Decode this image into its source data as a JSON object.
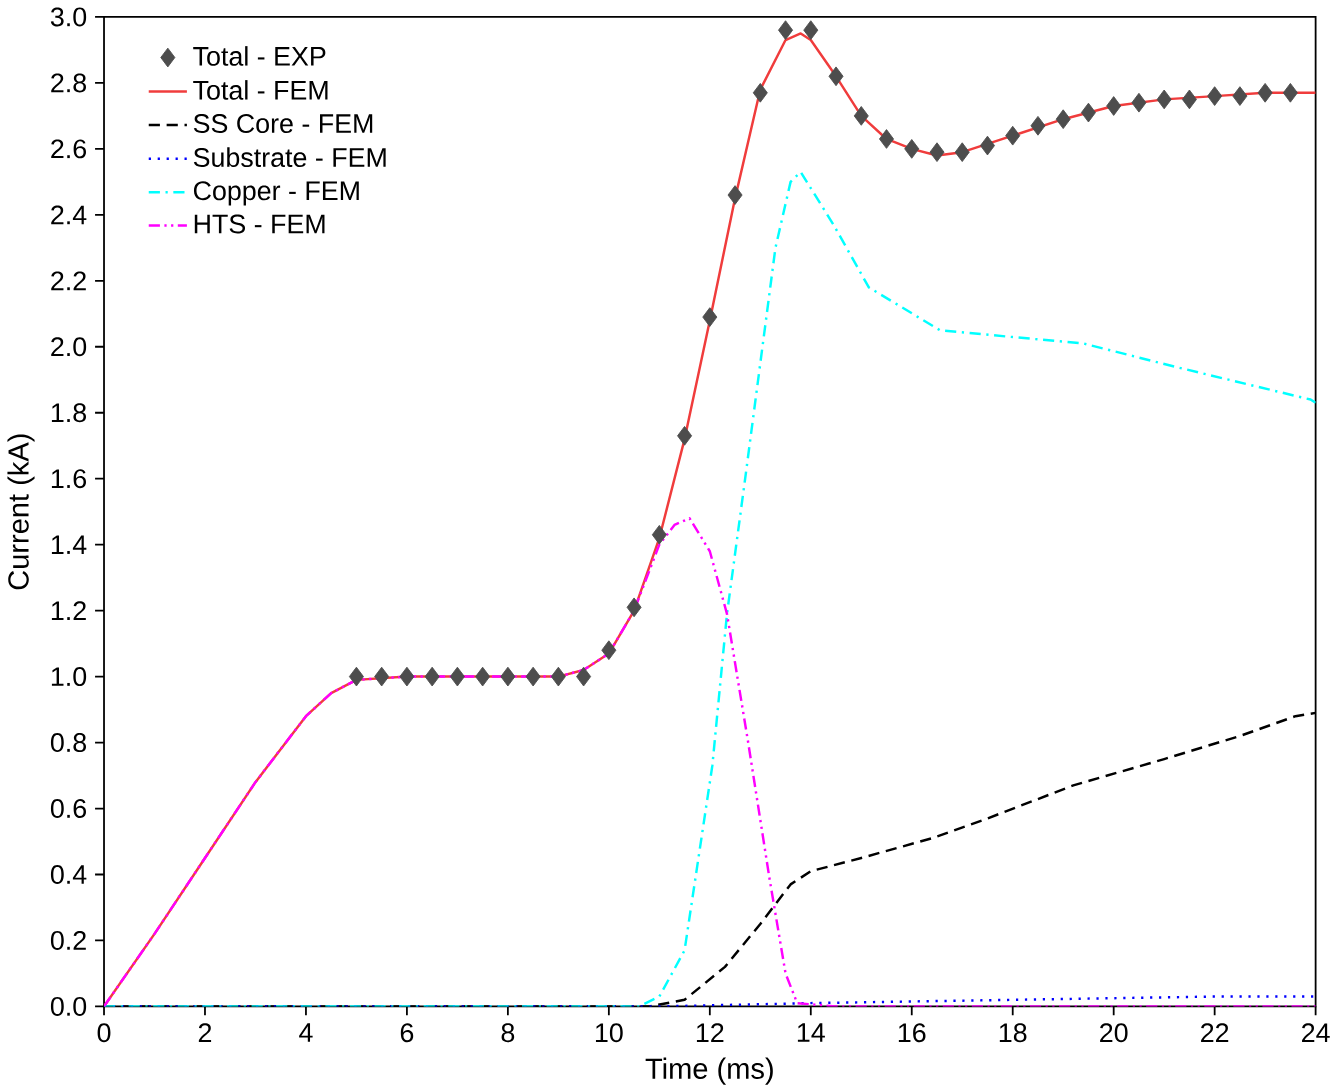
{
  "chart_data": {
    "type": "line",
    "xlabel": "Time (ms)",
    "ylabel": "Current (kA)",
    "xlim": [
      0,
      24
    ],
    "xticks": [
      0,
      2,
      4,
      6,
      8,
      10,
      12,
      14,
      16,
      18,
      20,
      22,
      24
    ],
    "ylim": [
      0,
      3.0
    ],
    "yticks": [
      {
        "value": 0,
        "label": "0.0"
      },
      {
        "value": 0.2,
        "label": "0.2"
      },
      {
        "value": 0.4,
        "label": "0.4"
      },
      {
        "value": 0.6,
        "label": "0.6"
      },
      {
        "value": 0.8,
        "label": "0.8"
      },
      {
        "value": 1.0,
        "label": "1.0"
      },
      {
        "value": 1.2,
        "label": "1.2"
      },
      {
        "value": 1.4,
        "label": "1.4"
      },
      {
        "value": 1.6,
        "label": "1.6"
      },
      {
        "value": 1.8,
        "label": "1.8"
      },
      {
        "value": 2.0,
        "label": "2.0"
      },
      {
        "value": 2.2,
        "label": "2.2"
      },
      {
        "value": 2.4,
        "label": "2.4"
      },
      {
        "value": 2.6,
        "label": "2.6"
      },
      {
        "value": 2.8,
        "label": "2.8"
      },
      {
        "value": 3.0,
        "label": "3.0"
      }
    ],
    "legend": "top left",
    "series": [
      {
        "name": "Total - EXP",
        "type": "scatter",
        "marker": "diamond",
        "color": "#4d4d4d",
        "x": [
          5.0,
          5.5,
          6.0,
          6.5,
          7.0,
          7.5,
          8.0,
          8.5,
          9.0,
          9.5,
          10.0,
          10.5,
          11.0,
          11.5,
          12.0,
          12.5,
          13.0,
          13.5,
          14.0,
          14.5,
          15.0,
          15.5,
          16.0,
          16.5,
          17.0,
          17.5,
          18.0,
          18.5,
          19.0,
          19.5,
          20.0,
          20.5,
          21.0,
          21.5,
          22.0,
          22.5,
          23.0,
          23.5
        ],
        "values": [
          1.0,
          1.0,
          1.0,
          1.0,
          1.0,
          1.0,
          1.0,
          1.0,
          1.0,
          1.0,
          1.08,
          1.21,
          1.43,
          1.73,
          2.09,
          2.46,
          2.77,
          2.96,
          2.96,
          2.82,
          2.7,
          2.63,
          2.6,
          2.59,
          2.59,
          2.61,
          2.64,
          2.67,
          2.69,
          2.71,
          2.73,
          2.74,
          2.75,
          2.75,
          2.76,
          2.76,
          2.77,
          2.77
        ]
      },
      {
        "name": "Total - FEM",
        "line_style": "solid",
        "color": "#f03c3c",
        "x": [
          0,
          1,
          2,
          3,
          4,
          4.5,
          5,
          6,
          9,
          9.5,
          10,
          10.5,
          11,
          11.5,
          12,
          12.5,
          13,
          13.5,
          13.8,
          14,
          14.5,
          15,
          15.5,
          16,
          16.5,
          17,
          18,
          19,
          20,
          21,
          22,
          23,
          24
        ],
        "values": [
          0,
          0.22,
          0.45,
          0.68,
          0.88,
          0.95,
          0.99,
          1.0,
          1.0,
          1.02,
          1.07,
          1.2,
          1.42,
          1.72,
          2.08,
          2.45,
          2.78,
          2.93,
          2.95,
          2.93,
          2.82,
          2.7,
          2.63,
          2.6,
          2.58,
          2.59,
          2.64,
          2.69,
          2.73,
          2.75,
          2.76,
          2.77,
          2.77
        ]
      },
      {
        "name": "SS Core - FEM",
        "line_style": "dashed",
        "color": "#000000",
        "x": [
          0,
          10.8,
          11.5,
          12.3,
          13.0,
          13.6,
          14.0,
          15.0,
          16.4,
          17.5,
          19.2,
          21.0,
          22.5,
          23.6,
          24
        ],
        "values": [
          0,
          0,
          0.02,
          0.12,
          0.25,
          0.37,
          0.41,
          0.45,
          0.51,
          0.57,
          0.67,
          0.75,
          0.82,
          0.88,
          0.89
        ]
      },
      {
        "name": "Substrate - FEM",
        "line_style": "dotted",
        "color": "#0000ff",
        "x": [
          0,
          11,
          14,
          18,
          22,
          24
        ],
        "values": [
          0,
          0,
          0.01,
          0.02,
          0.03,
          0.03
        ]
      },
      {
        "name": "Copper - FEM",
        "line_style": "dashdot",
        "color": "#00ffff",
        "x": [
          0,
          10.6,
          11.0,
          11.5,
          12.05,
          12.34,
          12.7,
          13.0,
          13.3,
          13.6,
          13.8,
          14.45,
          15.15,
          16.56,
          17.96,
          19.4,
          21.2,
          23.9,
          24
        ],
        "values": [
          0,
          0,
          0.03,
          0.17,
          0.73,
          1.19,
          1.6,
          1.95,
          2.3,
          2.5,
          2.53,
          2.37,
          2.18,
          2.05,
          2.03,
          2.01,
          1.94,
          1.84,
          1.83
        ]
      },
      {
        "name": "HTS - FEM",
        "line_style": "dashdotdot",
        "color": "#ff00ff",
        "x": [
          0,
          1,
          2,
          3,
          4,
          4.5,
          5,
          6,
          9,
          9.5,
          10,
          10.5,
          11,
          11.3,
          11.6,
          12.0,
          12.34,
          12.76,
          13.18,
          13.5,
          13.73,
          14.5,
          24
        ],
        "values": [
          0,
          0.22,
          0.45,
          0.68,
          0.88,
          0.95,
          0.99,
          1.0,
          1.0,
          1.02,
          1.07,
          1.2,
          1.4,
          1.46,
          1.48,
          1.38,
          1.19,
          0.8,
          0.39,
          0.1,
          0.01,
          0.0,
          0.0
        ]
      }
    ]
  }
}
